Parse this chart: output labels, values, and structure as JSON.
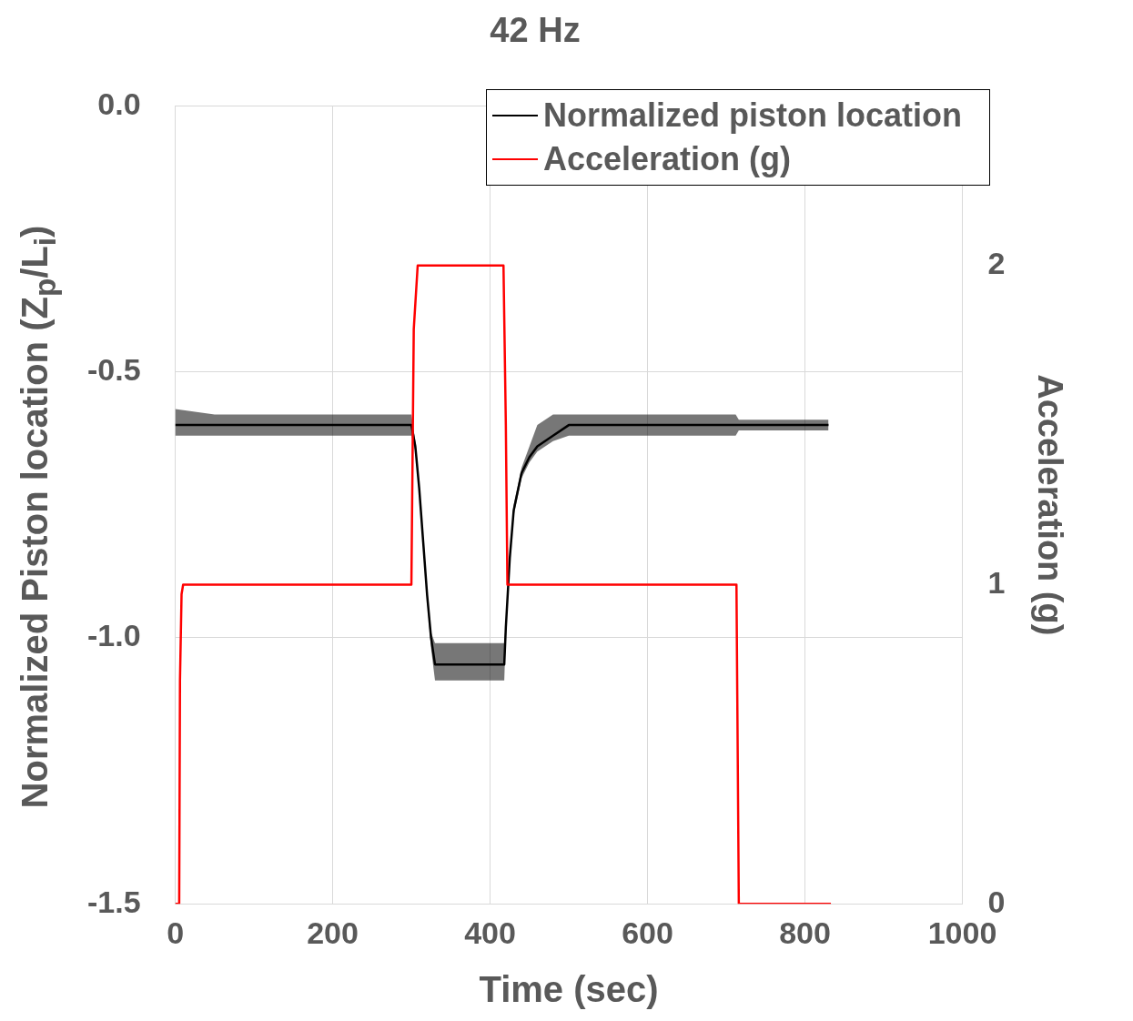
{
  "chart_data": {
    "type": "line",
    "title": "42 Hz",
    "xlabel": "Time (sec)",
    "ylabel": "Normalized Piston location (Z$_{p}$/L$_{i}$)",
    "y2label": "Acceleration (g)",
    "xlim": [
      0,
      1000
    ],
    "xticks": [
      0,
      200,
      400,
      600,
      800,
      1000
    ],
    "ylim": [
      -1.5,
      0
    ],
    "yticks": [
      {
        "value": -1.5,
        "label": "-1.5"
      },
      {
        "value": -1.0,
        "label": "-1.0"
      },
      {
        "value": -0.5,
        "label": "-0.5"
      },
      {
        "value": 0,
        "label": "0.0"
      }
    ],
    "y2lim": [
      0,
      2.5
    ],
    "y2ticks": [
      0,
      1,
      2
    ],
    "grid": true,
    "legend": "top right",
    "marker": "none",
    "line_style": "solid",
    "series": [
      {
        "name": "Normalized piston location",
        "color": "#000000",
        "x": [
          0,
          50,
          100,
          150,
          200,
          250,
          300,
          305,
          310,
          315,
          320,
          325,
          330,
          360,
          390,
          418,
          420,
          425,
          430,
          440,
          450,
          460,
          480,
          500,
          550,
          600,
          650,
          700,
          712,
          716,
          750,
          800,
          830
        ],
        "values": [
          -0.6,
          -0.6,
          -0.6,
          -0.6,
          -0.6,
          -0.6,
          -0.6,
          -0.64,
          -0.72,
          -0.82,
          -0.92,
          -1.0,
          -1.05,
          -1.05,
          -1.05,
          -1.05,
          -0.98,
          -0.85,
          -0.76,
          -0.69,
          -0.66,
          -0.64,
          -0.62,
          -0.6,
          -0.6,
          -0.6,
          -0.6,
          -0.6,
          -0.6,
          -0.6,
          -0.6,
          -0.6,
          -0.6
        ],
        "lower": [
          -0.62,
          -0.62,
          -0.62,
          -0.62,
          -0.62,
          -0.62,
          -0.62,
          -0.65,
          -0.73,
          -0.83,
          -0.93,
          -1.02,
          -1.08,
          -1.08,
          -1.08,
          -1.08,
          -0.99,
          -0.86,
          -0.77,
          -0.7,
          -0.67,
          -0.65,
          -0.63,
          -0.62,
          -0.62,
          -0.62,
          -0.62,
          -0.62,
          -0.62,
          -0.61,
          -0.61,
          -0.61,
          -0.61
        ],
        "upper": [
          -0.57,
          -0.58,
          -0.58,
          -0.58,
          -0.58,
          -0.58,
          -0.58,
          -0.63,
          -0.71,
          -0.81,
          -0.91,
          -0.99,
          -1.01,
          -1.01,
          -1.01,
          -1.01,
          -0.97,
          -0.84,
          -0.75,
          -0.68,
          -0.64,
          -0.6,
          -0.58,
          -0.58,
          -0.58,
          -0.58,
          -0.58,
          -0.58,
          -0.58,
          -0.59,
          -0.59,
          -0.59,
          -0.59
        ]
      },
      {
        "name": "Acceleration (g)",
        "color": "#ff0000",
        "axis": "y2",
        "x": [
          0,
          5,
          6,
          8,
          10,
          300,
          303,
          308,
          417,
          420,
          422,
          713,
          716,
          833
        ],
        "values": [
          0,
          0,
          0.7,
          0.97,
          1,
          1,
          1.8,
          2,
          2,
          1.5,
          1,
          1,
          0,
          0
        ]
      }
    ]
  }
}
